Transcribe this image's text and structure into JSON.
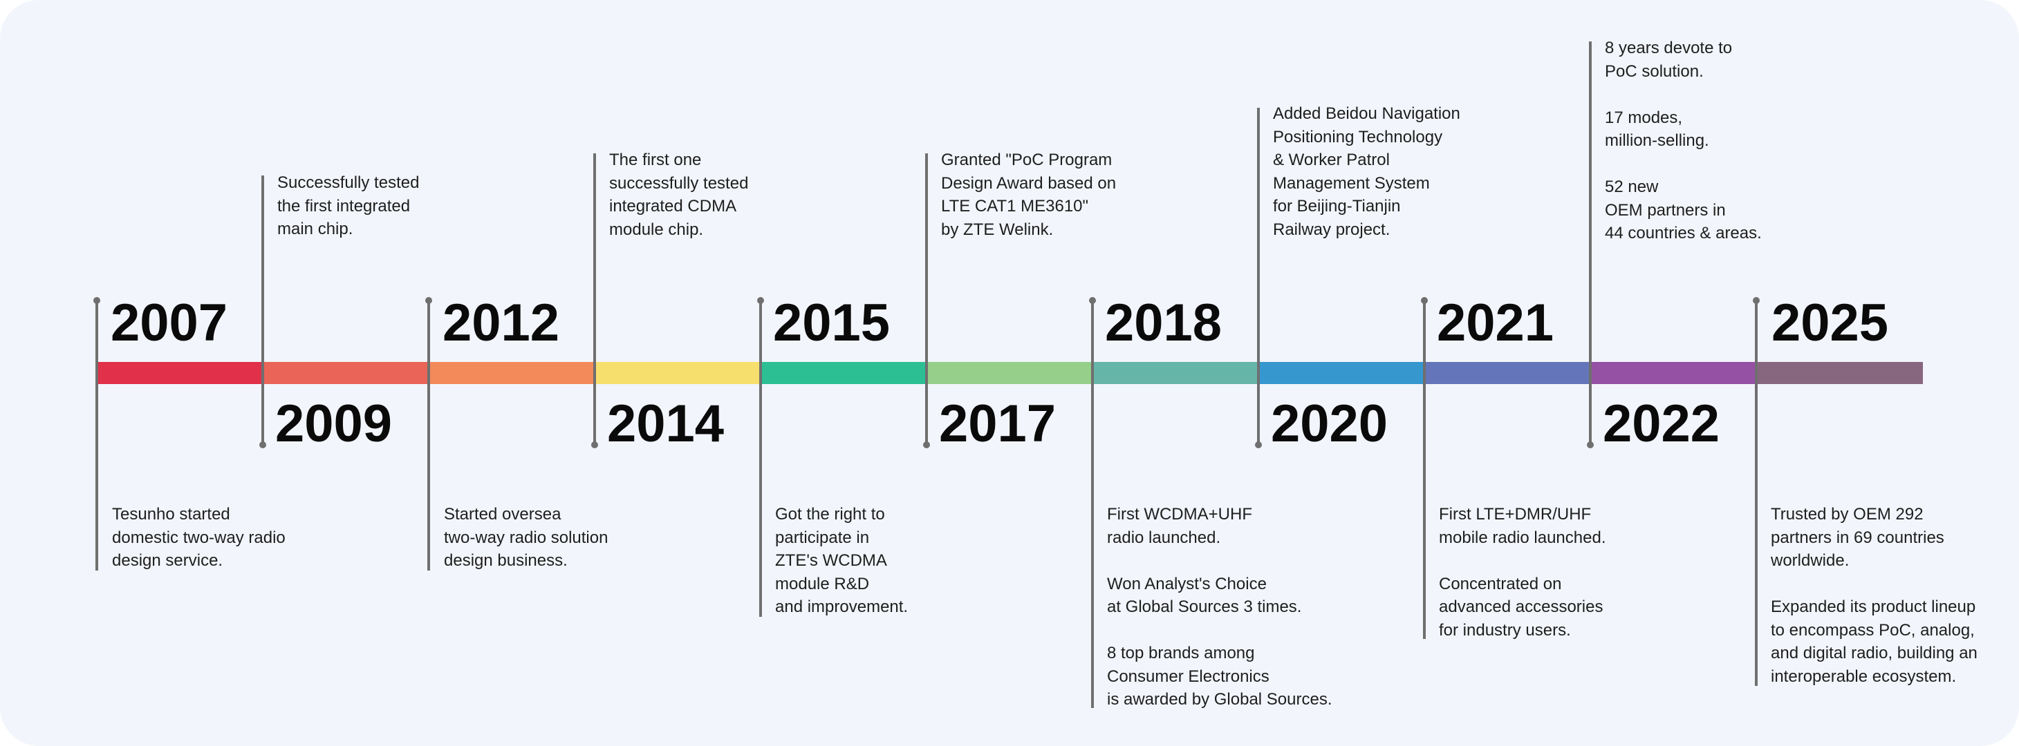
{
  "milestones": [
    {
      "year": "2007",
      "note": "Tesunho started\ndomestic two-way radio\ndesign service."
    },
    {
      "year": "2009",
      "note": "Successfully tested\nthe first integrated\nmain chip."
    },
    {
      "year": "2012",
      "note": "Started oversea\ntwo-way radio solution\ndesign business."
    },
    {
      "year": "2014",
      "note": "The first one\nsuccessfully tested\nintegrated CDMA\nmodule chip."
    },
    {
      "year": "2015",
      "note": "Got the right to\nparticipate in\nZTE's WCDMA\nmodule R&D\nand improvement."
    },
    {
      "year": "2017",
      "note": "Granted \"PoC Program\nDesign Award based on\nLTE CAT1 ME3610\"\nby ZTE Welink."
    },
    {
      "year": "2018",
      "note": "First WCDMA+UHF\nradio launched.\n\nWon Analyst's Choice\nat Global Sources 3 times.\n\n8 top brands among\nConsumer Electronics\nis awarded by Global Sources."
    },
    {
      "year": "2020",
      "note": "Added Beidou Navigation\nPositioning Technology\n& Worker Patrol\nManagement System\nfor Beijing-Tianjin\nRailway project."
    },
    {
      "year": "2021",
      "note": "First LTE+DMR/UHF\nmobile radio launched.\n\nConcentrated on\nadvanced accessories\nfor industry users."
    },
    {
      "year": "2022",
      "note": "8 years devote to\nPoC solution.\n\n17 modes,\nmillion-selling.\n\n52 new\nOEM partners in\n44 countries & areas."
    },
    {
      "year": "2025",
      "note": "Trusted by OEM 292\npartners in 69 countries\nworldwide.\n\nExpanded its product lineup\nto encompass PoC, analog,\nand digital radio, building an\ninteroperable ecosystem."
    }
  ],
  "colors": {
    "card_background": "#f2f5fb",
    "connector": "#6f6f6f",
    "year_text": "#0a0a0a",
    "note_text": "#1e1e1e",
    "bar_segments": [
      "#e0304a",
      "#ea6457",
      "#f28a5a",
      "#f7df6e",
      "#2cbf93",
      "#95cf8a",
      "#66b5a9",
      "#3697cf",
      "#6475b9",
      "#9551a4",
      "#876680"
    ]
  }
}
